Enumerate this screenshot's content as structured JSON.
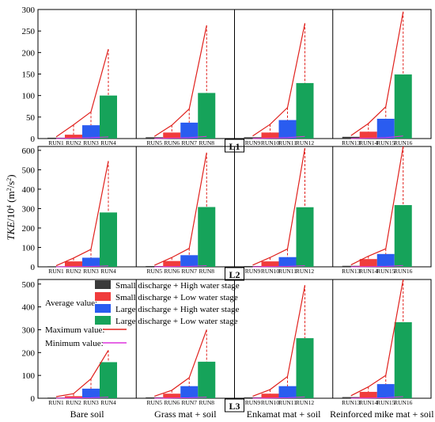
{
  "ylabel": {
    "prefix": "TKE",
    "mid1": "/10",
    "sup1": "4",
    "mid2": " (m",
    "sup2": "2",
    "mid3": "/s",
    "sup3": "2",
    "suffix": ")"
  },
  "group_labels": [
    "Bare soil",
    "Grass mat + soil",
    "Enkamat mat + soil",
    "Reinforced mike mat + soil"
  ],
  "colors": {
    "small_high": "#3a3a3a",
    "small_low": "#f03c3c",
    "large_high": "#2a5cf0",
    "large_low": "#16a35a",
    "max_line": "#e0201c",
    "min_line": "#dd33dd",
    "drop_line": "#e0201c"
  },
  "legend": {
    "average_label": "Average value:",
    "max_label": "Maximum value:",
    "min_label": "Minimum value:",
    "entries": [
      "Small discharge + High water stage",
      "Small discharge + Low water stage",
      "Large discharge + High water stage",
      "Large discharge + Low water stage"
    ]
  },
  "chart_data": [
    {
      "type": "bar",
      "panel_label": "L1",
      "ylim": [
        0,
        300
      ],
      "yticks": [
        0,
        50,
        100,
        150,
        200,
        250,
        300
      ],
      "categories": [
        "RUN1",
        "RUN2",
        "RUN3",
        "RUN4",
        "RUN5",
        "RUN6",
        "RUN7",
        "RUN8",
        "RUN9",
        "RUN10",
        "RUN11",
        "RUN12",
        "RUN13",
        "RUN14",
        "RUN15",
        "RUN16"
      ],
      "average": [
        2,
        9,
        31,
        100,
        3,
        14,
        37,
        106,
        3,
        14,
        43,
        129,
        4,
        16,
        46,
        149
      ],
      "maximum": [
        4,
        32,
        62,
        208,
        5,
        31,
        69,
        263,
        6,
        33,
        72,
        268,
        7,
        35,
        74,
        295
      ],
      "minimum": [
        0,
        1,
        2,
        4,
        0,
        1,
        2,
        5,
        0,
        1,
        2,
        5,
        0,
        1,
        2,
        6
      ]
    },
    {
      "type": "bar",
      "panel_label": "L2",
      "ylim": [
        0,
        620
      ],
      "yticks": [
        0,
        100,
        200,
        300,
        400,
        500,
        600
      ],
      "categories": [
        "RUN1",
        "RUN2",
        "RUN3",
        "RUN4",
        "RUN5",
        "RUN6",
        "RUN7",
        "RUN8",
        "RUN9",
        "RUN10",
        "RUN11",
        "RUN12",
        "RUN13",
        "RUN14",
        "RUN15",
        "RUN16"
      ],
      "average": [
        3,
        28,
        47,
        280,
        4,
        30,
        60,
        308,
        4,
        28,
        50,
        307,
        5,
        40,
        66,
        318
      ],
      "maximum": [
        6,
        45,
        90,
        545,
        8,
        48,
        95,
        588,
        9,
        48,
        92,
        612,
        10,
        55,
        93,
        620
      ],
      "minimum": [
        0,
        1,
        2,
        5,
        0,
        1,
        2,
        6,
        0,
        1,
        2,
        6,
        0,
        1,
        2,
        7
      ]
    },
    {
      "type": "bar",
      "panel_label": "L3",
      "ylim": [
        0,
        520
      ],
      "yticks": [
        0,
        100,
        200,
        300,
        400,
        500
      ],
      "categories": [
        "RUN1",
        "RUN2",
        "RUN3",
        "RUN4",
        "RUN5",
        "RUN6",
        "RUN7",
        "RUN8",
        "RUN9",
        "RUN10",
        "RUN11",
        "RUN12",
        "RUN13",
        "RUN14",
        "RUN15",
        "RUN16"
      ],
      "average": [
        3,
        9,
        42,
        158,
        4,
        20,
        53,
        160,
        4,
        20,
        53,
        263,
        5,
        28,
        62,
        333
      ],
      "maximum": [
        7,
        20,
        85,
        210,
        9,
        35,
        90,
        300,
        9,
        38,
        95,
        495,
        11,
        50,
        100,
        520
      ],
      "minimum": [
        0,
        1,
        2,
        5,
        0,
        1,
        2,
        5,
        0,
        1,
        2,
        6,
        0,
        1,
        2,
        7
      ]
    }
  ]
}
